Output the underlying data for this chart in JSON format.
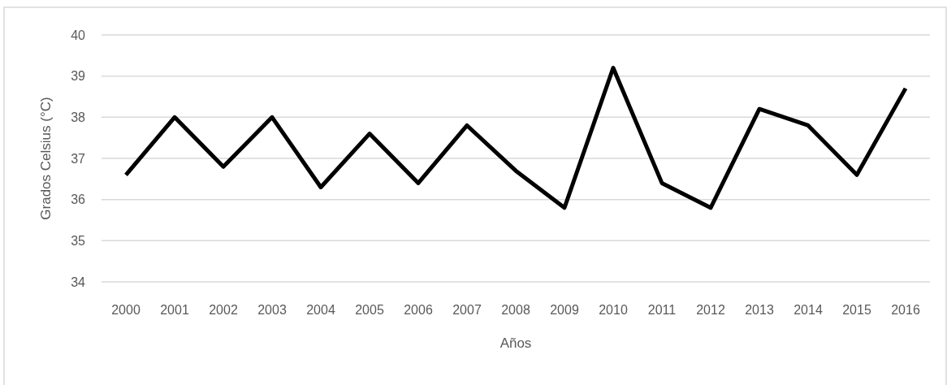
{
  "chart_data": {
    "type": "line",
    "xlabel": "Años",
    "ylabel": "Grados Celsius (°C)",
    "categories": [
      "2000",
      "2001",
      "2002",
      "2003",
      "2004",
      "2005",
      "2006",
      "2007",
      "2008",
      "2009",
      "2010",
      "2011",
      "2012",
      "2013",
      "2014",
      "2015",
      "2016"
    ],
    "series": [
      {
        "color": "#000000",
        "values": [
          36.6,
          38.0,
          36.8,
          38.0,
          36.3,
          37.6,
          36.4,
          37.8,
          36.7,
          35.8,
          39.2,
          36.4,
          35.8,
          38.2,
          37.8,
          36.6,
          38.7
        ]
      }
    ],
    "ylim": [
      34,
      40
    ],
    "yticks": [
      34,
      35,
      36,
      37,
      38,
      39,
      40
    ],
    "grid": "y",
    "marker": "none",
    "line_style": "solid"
  }
}
